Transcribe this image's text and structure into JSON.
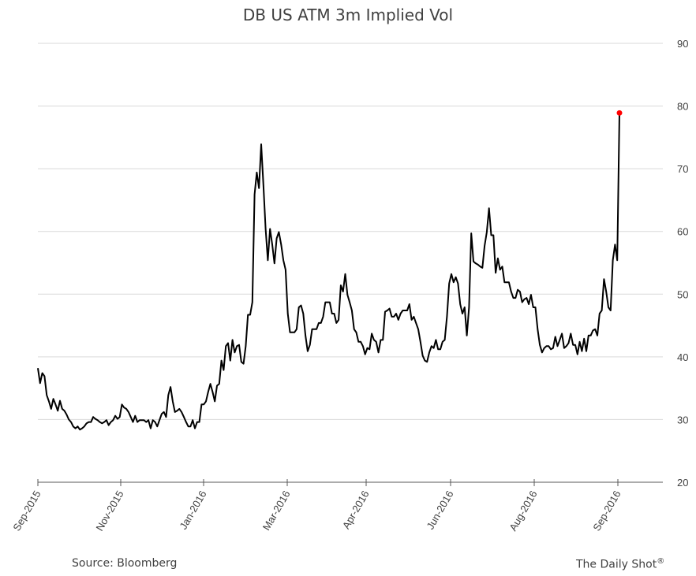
{
  "chart_data": {
    "type": "line",
    "title": "DB US ATM 3m Implied Vol",
    "xlabel": "",
    "ylabel": "",
    "ylim": [
      20,
      90
    ],
    "yticks": [
      "20",
      "30",
      "40",
      "50",
      "60",
      "70",
      "80",
      "90"
    ],
    "xticks": [
      "Sep-2015",
      "Nov-2015",
      "Jan-2016",
      "Mar-2016",
      "Apr-2016",
      "Jun-2016",
      "Aug-2016",
      "Sep-2016"
    ],
    "y_axis_side": "right",
    "grid": "horizontal",
    "line_color": "#000000",
    "last_point_color": "#ff0000",
    "series": [
      {
        "values": [
          38.2,
          35.8,
          37.4,
          36.9,
          33.9,
          32.9,
          31.7,
          33.3,
          32.4,
          31.4,
          33.0,
          31.7,
          31.4,
          30.8,
          30.0,
          29.6,
          28.9,
          28.6,
          28.9,
          28.4,
          28.6,
          28.9,
          29.4,
          29.6,
          29.6,
          30.4,
          30.1,
          29.9,
          29.6,
          29.4,
          29.6,
          29.9,
          29.1,
          29.6,
          29.9,
          30.6,
          30.1,
          30.4,
          32.4,
          31.9,
          31.7,
          31.2,
          30.4,
          29.6,
          30.6,
          29.6,
          29.9,
          29.9,
          29.9,
          29.6,
          29.9,
          28.6,
          29.9,
          29.6,
          28.9,
          29.9,
          30.9,
          31.2,
          30.4,
          33.9,
          35.2,
          32.9,
          31.2,
          31.4,
          31.7,
          31.2,
          30.4,
          29.6,
          28.9,
          28.9,
          29.9,
          28.6,
          29.6,
          29.6,
          32.4,
          32.4,
          32.9,
          34.4,
          35.7,
          34.4,
          32.9,
          35.4,
          35.7,
          39.4,
          37.9,
          41.7,
          42.2,
          39.4,
          42.7,
          40.7,
          41.7,
          41.9,
          39.2,
          38.9,
          41.7,
          46.7,
          46.7,
          48.7,
          65.9,
          69.4,
          66.9,
          73.9,
          67.4,
          60.4,
          55.4,
          60.4,
          57.9,
          54.9,
          58.9,
          59.9,
          57.9,
          55.4,
          53.9,
          46.9,
          43.9,
          43.9,
          43.9,
          44.4,
          47.9,
          48.2,
          46.9,
          43.4,
          40.9,
          41.9,
          44.4,
          44.4,
          44.4,
          45.4,
          45.4,
          46.4,
          48.7,
          48.7,
          48.7,
          46.9,
          46.9,
          45.4,
          45.9,
          51.4,
          50.4,
          53.2,
          49.9,
          48.7,
          47.4,
          44.4,
          43.9,
          42.4,
          42.4,
          41.7,
          40.4,
          41.4,
          41.2,
          43.7,
          42.7,
          42.4,
          40.7,
          42.7,
          42.7,
          47.2,
          47.4,
          47.7,
          46.4,
          46.4,
          46.9,
          45.9,
          46.9,
          47.4,
          47.4,
          47.4,
          48.4,
          45.9,
          46.4,
          45.4,
          44.4,
          42.4,
          40.2,
          39.4,
          39.2,
          40.7,
          41.7,
          41.4,
          42.7,
          41.2,
          41.2,
          42.4,
          42.7,
          46.4,
          51.7,
          53.2,
          51.9,
          52.7,
          51.7,
          48.4,
          46.9,
          47.9,
          43.4,
          47.9,
          59.7,
          55.2,
          54.9,
          54.7,
          54.4,
          54.2,
          57.7,
          59.9,
          63.7,
          59.4,
          59.4,
          53.4,
          55.7,
          53.9,
          54.4,
          51.9,
          51.9,
          51.9,
          50.4,
          49.4,
          49.4,
          50.7,
          50.4,
          48.7,
          49.2,
          49.4,
          48.4,
          49.9,
          47.9,
          47.9,
          44.4,
          41.9,
          40.7,
          41.4,
          41.7,
          41.7,
          41.2,
          41.4,
          43.2,
          41.7,
          42.7,
          43.7,
          41.4,
          41.7,
          42.2,
          43.7,
          41.9,
          41.9,
          40.4,
          42.4,
          40.9,
          42.9,
          40.9,
          43.4,
          43.4,
          44.2,
          44.4,
          43.4,
          46.9,
          47.4,
          52.4,
          50.4,
          47.9,
          47.4,
          55.4,
          57.9,
          55.4,
          78.9
        ]
      }
    ]
  },
  "footer": {
    "source": "Source: Bloomberg",
    "brand": "The Daily Shot",
    "brand_mark": "®"
  }
}
